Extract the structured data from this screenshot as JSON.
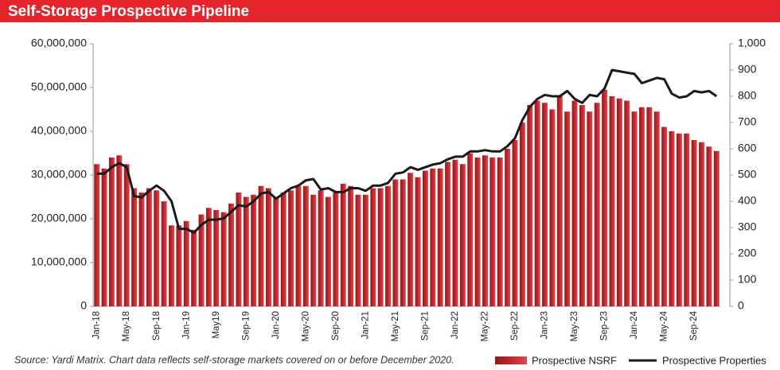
{
  "chart_data": {
    "type": "bar-line",
    "title": "Self-Storage Prospective Pipeline",
    "source": "Source: Yardi Matrix. Chart data reflects self-storage markets covered on or before December 2020.",
    "categories": [
      "Jan-18",
      null,
      null,
      null,
      "May-18",
      null,
      null,
      null,
      "Sep-18",
      null,
      null,
      null,
      "Jan-19",
      null,
      null,
      null,
      "May19",
      null,
      null,
      null,
      "Sep-19",
      null,
      null,
      null,
      "Jan-20",
      null,
      null,
      null,
      "May-20",
      null,
      null,
      null,
      "Sep-20",
      null,
      null,
      null,
      "Jan-21",
      null,
      null,
      null,
      "May-21",
      null,
      null,
      null,
      "Sep-21",
      null,
      null,
      null,
      "Jan-22",
      null,
      null,
      null,
      "May-22",
      null,
      null,
      null,
      "Sep-22",
      null,
      null,
      null,
      "Jan-23",
      null,
      null,
      null,
      "May-23",
      null,
      null,
      null,
      "Sep-23",
      null,
      null,
      null,
      "Jan-24",
      null,
      null,
      null,
      "May-24",
      null,
      null,
      null,
      "Sep-24",
      null,
      null,
      null
    ],
    "series": [
      {
        "name": "Prospective NSRF",
        "color": "#c1272d",
        "values": [
          32500000,
          31500000,
          34000000,
          34500000,
          32500000,
          27000000,
          26000000,
          27000000,
          26500000,
          24000000,
          18500000,
          18500000,
          19500000,
          17500000,
          21000000,
          22500000,
          22000000,
          21500000,
          23500000,
          26000000,
          25000000,
          25500000,
          27500000,
          27000000,
          25000000,
          26000000,
          26500000,
          27500000,
          27500000,
          25500000,
          26500000,
          25000000,
          26000000,
          28000000,
          27500000,
          25500000,
          25500000,
          27000000,
          27000000,
          27500000,
          29000000,
          29000000,
          30500000,
          29500000,
          31000000,
          31500000,
          31500000,
          33000000,
          33500000,
          32500000,
          35000000,
          34000000,
          34500000,
          34000000,
          34000000,
          36000000,
          38000000,
          42000000,
          46000000,
          47000000,
          46500000,
          45000000,
          48000000,
          44500000,
          47000000,
          46000000,
          44500000,
          46500000,
          49500000,
          48000000,
          47500000,
          47000000,
          44500000,
          45500000,
          45500000,
          44500000,
          41000000,
          40000000,
          39500000,
          39500000,
          38000000,
          37500000,
          36500000,
          35500000
        ]
      },
      {
        "name": "Prospective Properties",
        "color": "#1a1a1a",
        "axis": "y2",
        "values": [
          505,
          505,
          530,
          545,
          530,
          420,
          415,
          440,
          460,
          440,
          400,
          295,
          295,
          280,
          310,
          330,
          330,
          335,
          360,
          385,
          380,
          400,
          430,
          435,
          410,
          430,
          450,
          460,
          480,
          485,
          445,
          450,
          435,
          435,
          450,
          450,
          440,
          460,
          460,
          470,
          505,
          510,
          530,
          520,
          530,
          540,
          545,
          560,
          570,
          570,
          590,
          590,
          595,
          590,
          590,
          610,
          640,
          710,
          760,
          790,
          805,
          800,
          800,
          820,
          790,
          775,
          805,
          800,
          830,
          900,
          895,
          890,
          885,
          850,
          860,
          870,
          865,
          810,
          795,
          800,
          820,
          815,
          820,
          800
        ]
      }
    ],
    "ylim": [
      0,
      60000000
    ],
    "yticks": [
      0,
      {
        "value": 10000000,
        "label": "10,000,000"
      },
      {
        "value": 20000000,
        "label": "20,000,000"
      },
      {
        "value": 30000000,
        "label": "30,000,000"
      },
      {
        "value": 40000000,
        "label": "40,000,000"
      },
      {
        "value": 50000000,
        "label": "50,000,000"
      },
      {
        "value": 60000000,
        "label": "60,000,000"
      }
    ],
    "y2lim": [
      0,
      1000
    ],
    "y2ticks": [
      0,
      100,
      200,
      300,
      400,
      500,
      600,
      700,
      800,
      900,
      {
        "value": 1000,
        "label": "1,000"
      }
    ],
    "legend": "bottom-right"
  }
}
